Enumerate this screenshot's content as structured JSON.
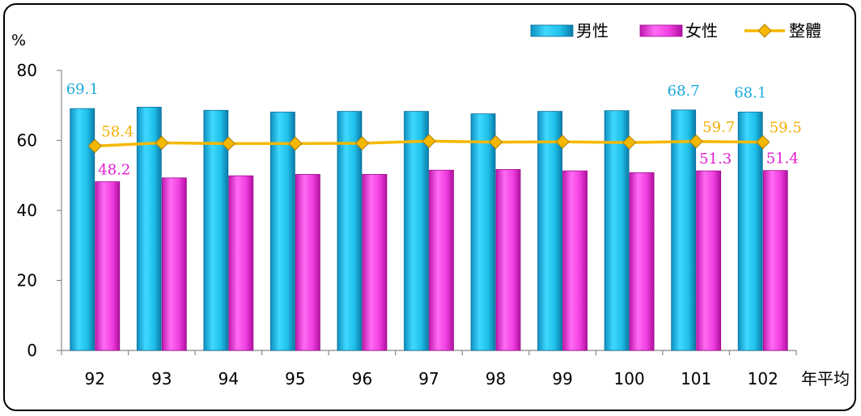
{
  "chart_data": {
    "type": "bar",
    "ylabel": "%",
    "xlabel": "年平均",
    "ylim": [
      0,
      80
    ],
    "yticks": [
      0,
      20,
      40,
      60,
      80
    ],
    "categories": [
      "92",
      "93",
      "94",
      "95",
      "96",
      "97",
      "98",
      "99",
      "100",
      "101",
      "102"
    ],
    "series": [
      {
        "name": "男性",
        "kind": "bar",
        "color": "#1fc0ea",
        "values": [
          69.1,
          69.5,
          68.6,
          68.1,
          68.3,
          68.3,
          67.6,
          68.3,
          68.5,
          68.7,
          68.1
        ]
      },
      {
        "name": "女性",
        "kind": "bar",
        "color": "#f03ee0",
        "values": [
          48.2,
          49.3,
          49.9,
          50.3,
          50.3,
          51.5,
          51.7,
          51.3,
          50.8,
          51.3,
          51.4
        ]
      },
      {
        "name": "整體",
        "kind": "line",
        "color": "#f5b800",
        "values": [
          58.4,
          59.3,
          59.1,
          59.1,
          59.2,
          59.8,
          59.5,
          59.6,
          59.4,
          59.7,
          59.5
        ]
      }
    ],
    "data_labels": [
      {
        "series": 0,
        "index": 0,
        "text": "69.1"
      },
      {
        "series": 2,
        "index": 0,
        "text": "58.4"
      },
      {
        "series": 1,
        "index": 0,
        "text": "48.2"
      },
      {
        "series": 0,
        "index": 9,
        "text": "68.7"
      },
      {
        "series": 2,
        "index": 9,
        "text": "59.7"
      },
      {
        "series": 1,
        "index": 9,
        "text": "51.3"
      },
      {
        "series": 0,
        "index": 10,
        "text": "68.1"
      },
      {
        "series": 2,
        "index": 10,
        "text": "59.5"
      },
      {
        "series": 1,
        "index": 10,
        "text": "51.4"
      }
    ],
    "legend_position": "top-right",
    "grid": false
  }
}
